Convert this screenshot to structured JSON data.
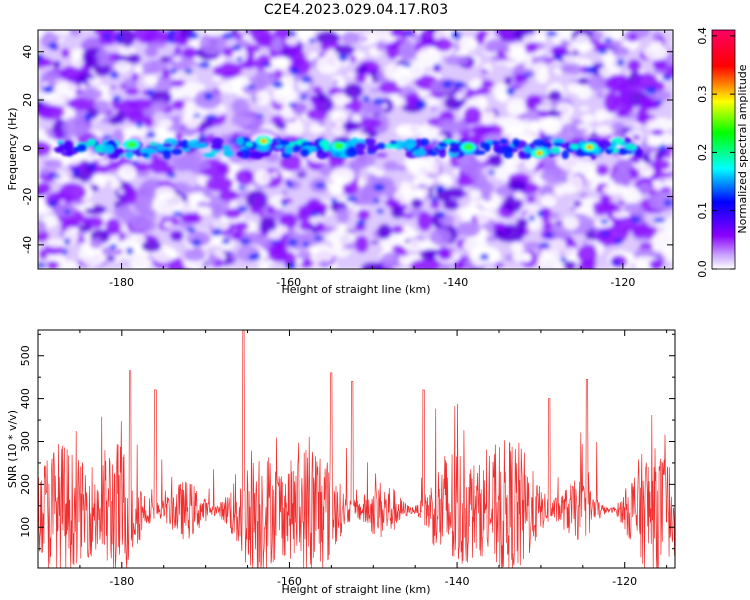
{
  "title": "C2E4.2023.029.04.17.R03",
  "chart_data": [
    {
      "type": "heatmap",
      "xlabel": "Height of straight line (km)",
      "ylabel": "Frequency (Hz)",
      "xlim": [
        -190,
        -114
      ],
      "ylim": [
        -50,
        49
      ],
      "x_ticks": [
        -180,
        -160,
        -140,
        -120
      ],
      "y_ticks": [
        -40,
        -20,
        0,
        20,
        40
      ],
      "grid": false,
      "colorbar": {
        "label": "Normalized spectral amplitude",
        "range": [
          0.0,
          0.41
        ],
        "ticks": [
          0.0,
          0.1,
          0.2,
          0.3,
          0.4
        ],
        "colors": [
          "#ffffff",
          "#8a00ff",
          "#0000ff",
          "#00ffff",
          "#00ff00",
          "#ffff00",
          "#ff0000",
          "#ff0066"
        ]
      },
      "signal_band": {
        "frequency_hz": 0,
        "width_hz": 6
      },
      "peaks": [
        {
          "x": -178.8,
          "y": 1.5,
          "value": 0.24
        },
        {
          "x": -163.0,
          "y": 3.0,
          "value": 0.3
        },
        {
          "x": -154.0,
          "y": 1.0,
          "value": 0.2
        },
        {
          "x": -138.5,
          "y": 0.5,
          "value": 0.22
        },
        {
          "x": -130.0,
          "y": -2.0,
          "value": 0.3
        },
        {
          "x": -124.0,
          "y": 0.5,
          "value": 0.38
        }
      ]
    },
    {
      "type": "line",
      "xlabel": "Height of straight line (km)",
      "ylabel": "SNR (10 * v/v)",
      "xlim": [
        -190,
        -114
      ],
      "ylim": [
        5,
        560
      ],
      "x_ticks": [
        -180,
        -160,
        -140,
        -120
      ],
      "y_ticks": [
        100,
        200,
        300,
        400,
        500
      ],
      "grid": false,
      "series_color": "#f03030",
      "baseline_mean": 140,
      "notable_peaks": [
        {
          "x": -179,
          "y": 465
        },
        {
          "x": -176,
          "y": 420
        },
        {
          "x": -165.5,
          "y": 560
        },
        {
          "x": -155,
          "y": 460
        },
        {
          "x": -152.5,
          "y": 440
        },
        {
          "x": -144,
          "y": 420
        },
        {
          "x": -124.5,
          "y": 445
        },
        {
          "x": -129,
          "y": 400
        }
      ]
    }
  ]
}
